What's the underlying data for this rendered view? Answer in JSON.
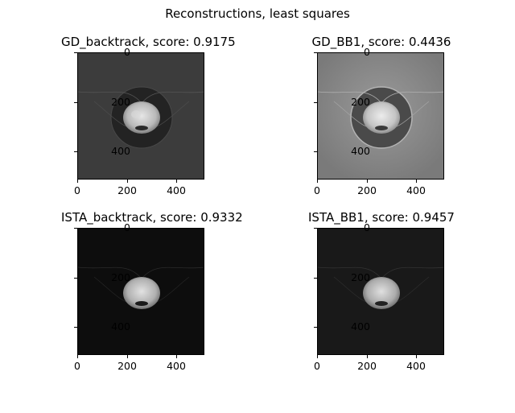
{
  "figure": {
    "suptitle": "Reconstructions, least squares",
    "tick_labels": [
      "0",
      "200",
      "400"
    ],
    "panels": [
      {
        "title": "GD_backtrack, score: 0.9175",
        "background": "#3a3a3a"
      },
      {
        "title": "GD_BB1, score: 0.4436",
        "background": "#8c8c8c"
      },
      {
        "title": "ISTA_backtrack, score: 0.9332",
        "background": "#0d0d0d"
      },
      {
        "title": "ISTA_BB1, score: 0.9457",
        "background": "#191919"
      }
    ]
  }
}
